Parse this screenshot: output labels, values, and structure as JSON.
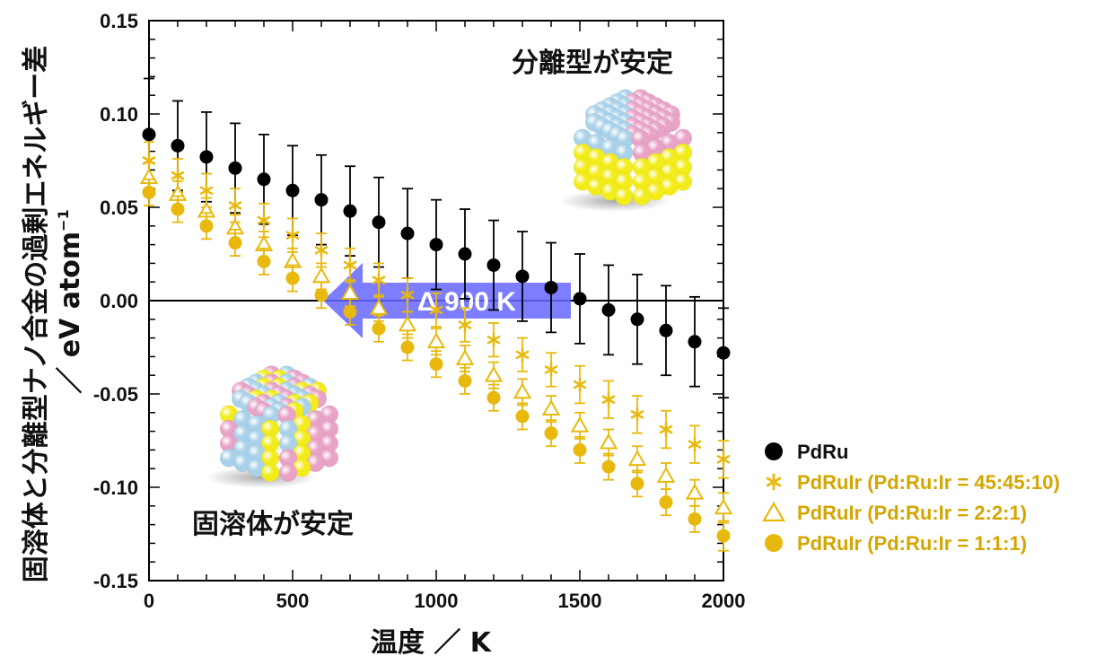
{
  "chart_data": {
    "type": "scatter",
    "title": "",
    "xlabel": "温度 ／ K",
    "ylabel_main": "固溶体と分離型ナノ合金の過剰エネルギー差",
    "ylabel_unit_prefix": "／ eV atom",
    "ylabel_unit_sup": "−1",
    "xlim": [
      0,
      2000
    ],
    "ylim": [
      -0.15,
      0.15
    ],
    "x_ticks": [
      0,
      500,
      1000,
      1500,
      2000
    ],
    "y_ticks": [
      -0.15,
      -0.1,
      -0.05,
      0.0,
      0.05,
      0.1,
      0.15
    ],
    "y_tick_labels": [
      "-0.15",
      "-0.10",
      "-0.05",
      "0.00",
      "0.05",
      "0.10",
      "0.15"
    ],
    "x_minor_step": 100,
    "y_minor_step": 0.01,
    "zero_line": true,
    "grid": false,
    "legend_position": "right",
    "x": [
      0,
      100,
      200,
      300,
      400,
      500,
      600,
      700,
      800,
      900,
      1000,
      1100,
      1200,
      1300,
      1400,
      1500,
      1600,
      1700,
      1800,
      1900,
      2000
    ],
    "series": [
      {
        "name": "PdRu",
        "marker": "circle",
        "color": "#000000",
        "values": [
          0.089,
          0.083,
          0.077,
          0.071,
          0.065,
          0.059,
          0.054,
          0.048,
          0.042,
          0.036,
          0.03,
          0.025,
          0.019,
          0.013,
          0.007,
          0.001,
          -0.005,
          -0.01,
          -0.016,
          -0.022,
          -0.028
        ],
        "error": [
          0.03,
          0.024,
          0.024,
          0.024,
          0.024,
          0.024,
          0.024,
          0.024,
          0.024,
          0.024,
          0.024,
          0.024,
          0.024,
          0.024,
          0.024,
          0.024,
          0.024,
          0.024,
          0.024,
          0.024,
          0.024
        ]
      },
      {
        "name": "PdRuIr (Pd:Ru:Ir = 45:45:10)",
        "marker": "asterisk",
        "color": "#e8b90c",
        "values": [
          0.075,
          0.067,
          0.059,
          0.051,
          0.043,
          0.035,
          0.027,
          0.019,
          0.011,
          0.003,
          -0.005,
          -0.013,
          -0.021,
          -0.029,
          -0.037,
          -0.045,
          -0.053,
          -0.061,
          -0.069,
          -0.077,
          -0.085
        ],
        "error": [
          0.01,
          0.009,
          0.009,
          0.009,
          0.009,
          0.009,
          0.009,
          0.009,
          0.009,
          0.009,
          0.009,
          0.009,
          0.009,
          0.009,
          0.009,
          0.01,
          0.01,
          0.01,
          0.01,
          0.01,
          0.01
        ]
      },
      {
        "name": "PdRuIr (Pd:Ru:Ir = 2:2:1)",
        "marker": "triangle",
        "color": "#e8b90c",
        "values": [
          0.066,
          0.057,
          0.048,
          0.039,
          0.03,
          0.021,
          0.013,
          0.004,
          -0.004,
          -0.013,
          -0.022,
          -0.031,
          -0.04,
          -0.049,
          -0.058,
          -0.067,
          -0.076,
          -0.085,
          -0.094,
          -0.103,
          -0.111
        ],
        "error": [
          0.008,
          0.007,
          0.007,
          0.007,
          0.007,
          0.007,
          0.007,
          0.007,
          0.007,
          0.007,
          0.007,
          0.007,
          0.007,
          0.007,
          0.007,
          0.007,
          0.007,
          0.007,
          0.007,
          0.007,
          0.008
        ]
      },
      {
        "name": "PdRuIr (Pd:Ru:Ir = 1:1:1)",
        "marker": "circle",
        "color": "#e8b90c",
        "values": [
          0.058,
          0.049,
          0.04,
          0.031,
          0.021,
          0.012,
          0.003,
          -0.006,
          -0.015,
          -0.025,
          -0.034,
          -0.043,
          -0.052,
          -0.062,
          -0.071,
          -0.08,
          -0.089,
          -0.098,
          -0.108,
          -0.117,
          -0.126
        ],
        "error": [
          0.007,
          0.007,
          0.007,
          0.007,
          0.007,
          0.007,
          0.007,
          0.007,
          0.007,
          0.007,
          0.007,
          0.007,
          0.007,
          0.007,
          0.007,
          0.007,
          0.007,
          0.007,
          0.007,
          0.007,
          0.008
        ]
      }
    ],
    "annotations": {
      "separated": "分離型が安定",
      "solid_solution": "固溶体が安定",
      "arrow_label": "Δ 900 K",
      "arrow_from_x": 1500,
      "arrow_to_x": 600,
      "arrow_y": 0.0,
      "arrow_color": "#6666ff"
    }
  }
}
